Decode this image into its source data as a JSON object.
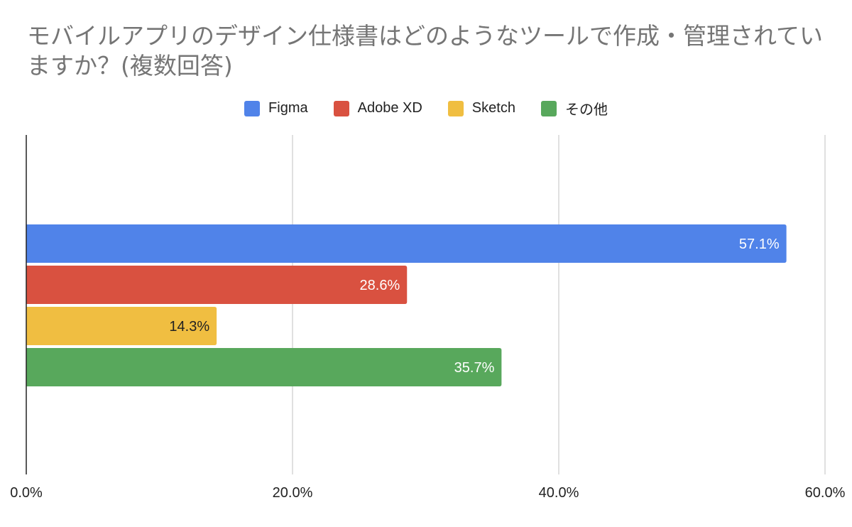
{
  "chart_data": {
    "type": "bar",
    "orientation": "horizontal",
    "title": "モバイルアプリのデザイン仕様書はどのようなツールで作成・管理されていますか？(複数回答)",
    "series": [
      {
        "name": "Figma",
        "value": 57.1,
        "label": "57.1%",
        "color": "#5083E9"
      },
      {
        "name": "Adobe XD",
        "value": 28.6,
        "label": "28.6%",
        "color": "#D95140"
      },
      {
        "name": "Sketch",
        "value": 14.3,
        "label": "14.3%",
        "color": "#F0BE41"
      },
      {
        "name": "その他",
        "value": 35.7,
        "label": "35.7%",
        "color": "#58A85C"
      }
    ],
    "xlim": [
      0,
      60
    ],
    "xticks": [
      0,
      20,
      40,
      60
    ],
    "xtick_labels": [
      "0.0%",
      "20.0%",
      "40.0%",
      "60.0%"
    ],
    "grid": true,
    "legend_position": "top"
  }
}
